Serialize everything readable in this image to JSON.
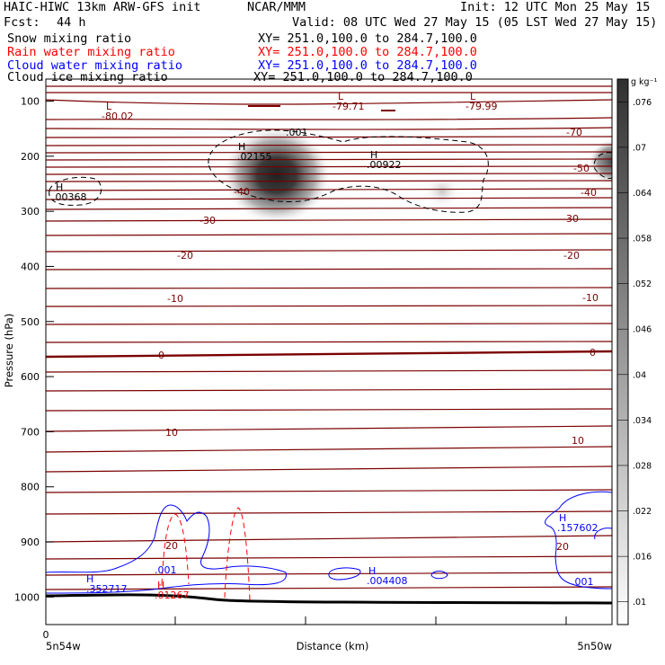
{
  "header": {
    "model": "HAIC-HIWC 13km ARW-GFS init",
    "org": "NCAR/MMM",
    "init": "Init: 12 UTC Mon 25 May 15",
    "fcst_label": "Fcst:",
    "fcst_value": "44 h",
    "valid": "Valid: 08 UTC Wed 27 May 15 (05 LST Wed 27 May 15)"
  },
  "fields": [
    {
      "name": "Snow mixing ratio",
      "xy": "XY= 251.0,100.0 to 284.7,100.0",
      "color": "#000000"
    },
    {
      "name": "Rain water mixing ratio",
      "xy": "XY= 251.0,100.0 to 284.7,100.0",
      "color": "#ff0000"
    },
    {
      "name": "Cloud water mixing ratio",
      "xy": "XY= 251.0,100.0 to 284.7,100.0",
      "color": "#0000ff"
    },
    {
      "name": "Cloud ice mixing ratio",
      "xy": "XY= 251.0,100.0 to 284.7,100.0",
      "color": "#000000"
    }
  ],
  "chart_data": {
    "type": "heatmap",
    "xlabel": "Distance (km)",
    "ylabel": "Pressure (hPa)",
    "x_ticks": [
      "0"
    ],
    "x_endpoints": [
      "5n54w",
      "5n50w"
    ],
    "y_ticks": [
      100,
      200,
      300,
      400,
      500,
      600,
      700,
      800,
      900,
      1000
    ],
    "ylim": [
      1050,
      60
    ],
    "colorbar": {
      "unit": "g kg⁻¹",
      "ticks": [
        ".01",
        ".016",
        ".022",
        ".028",
        ".034",
        ".04",
        ".046",
        ".052",
        ".058",
        ".064",
        ".07",
        ".076"
      ],
      "range": [
        0.007,
        0.079
      ]
    },
    "temperature_labels": [
      "-80.02",
      "-79.71",
      "-79.99",
      "-70",
      "-50",
      "-40",
      "-40",
      "-30",
      "-30",
      "-20",
      "-20",
      "-10",
      "-10",
      "0",
      "0",
      "10",
      "10",
      "20",
      "20"
    ],
    "extrema": [
      {
        "type": "L",
        "value": "-80.02"
      },
      {
        "type": "L",
        "value": "-79.71"
      },
      {
        "type": "L",
        "value": "-79.99"
      },
      {
        "type": "H",
        "value": ".00368"
      },
      {
        "type": "H",
        "value": ".02155"
      },
      {
        "type": "H",
        "value": ".00922"
      },
      {
        "type": "H",
        "value": ".352717",
        "color": "#0000ff"
      },
      {
        "type": "H",
        "value": ".004408",
        "color": "#0000ff"
      },
      {
        "type": "H",
        "value": ".157602",
        "color": "#0000ff"
      },
      {
        "type": "H",
        "value": ".01267",
        "color": "#ff0000"
      }
    ],
    "contour_labels": [
      {
        "text": ".001",
        "color": "#000000"
      },
      {
        "text": ".001",
        "color": "#0000ff"
      },
      {
        "text": ".001",
        "color": "#0000ff"
      }
    ],
    "colors": {
      "temperature": "#7a0000",
      "snow": "#000000",
      "rain": "#ff0000",
      "cloud": "#0000ff"
    }
  }
}
